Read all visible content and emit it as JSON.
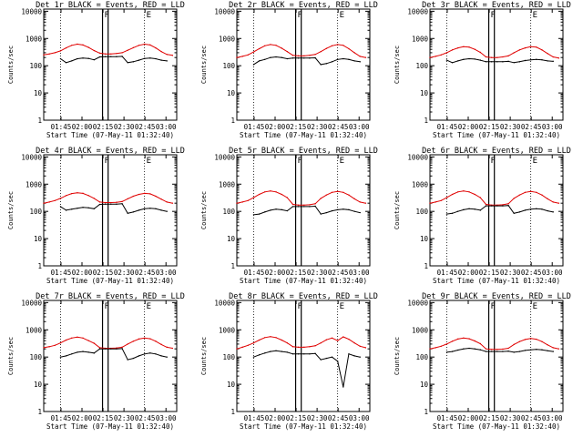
{
  "figure": {
    "colors": {
      "events": "#000000",
      "lld": "#e00000",
      "axes": "#000000",
      "background": "#ffffff"
    },
    "common": {
      "ylabel": "Counts/sec",
      "xlabel": "Start Time (07-May-11 01:32:40)",
      "x_ticks": [
        "01:45",
        "02:00",
        "02:15",
        "02:30",
        "02:45",
        "03:00"
      ],
      "y_ticks": [
        "1",
        "10",
        "100",
        "1000",
        "10000"
      ],
      "markers": [
        "F",
        "E"
      ]
    }
  },
  "chart_data": [
    {
      "type": "line",
      "title": "Det 1r BLACK = Events, RED = LLD",
      "x_units": "minutes after 01:32:40",
      "xlim": [
        0,
        95
      ],
      "ylim": [
        1,
        12000
      ],
      "yscale": "log",
      "grid": false,
      "x": [
        0,
        4,
        8,
        12,
        16,
        20,
        24,
        28,
        32,
        36,
        40,
        44,
        48,
        52,
        56,
        60,
        64,
        68,
        72,
        76,
        80,
        84,
        88,
        92
      ],
      "series": [
        {
          "name": "LLD",
          "color": "red",
          "values": [
            250,
            270,
            300,
            350,
            450,
            560,
            620,
            580,
            470,
            360,
            290,
            270,
            270,
            280,
            300,
            370,
            460,
            560,
            620,
            580,
            450,
            330,
            260,
            240
          ]
        },
        {
          "name": "Events",
          "color": "black",
          "values": [
            null,
            null,
            null,
            180,
            130,
            150,
            180,
            190,
            185,
            165,
            210,
            215,
            215,
            215,
            220,
            130,
            140,
            160,
            185,
            190,
            180,
            160,
            150,
            null
          ]
        }
      ],
      "markers": {
        "F": 42,
        "E": 72
      },
      "vertical_lines": [
        12,
        42,
        46,
        72
      ]
    },
    {
      "type": "line",
      "title": "Det 2r BLACK = Events, RED = LLD",
      "x_units": "minutes after 01:32:40",
      "xlim": [
        0,
        95
      ],
      "ylim": [
        1,
        12000
      ],
      "yscale": "log",
      "grid": false,
      "x": [
        0,
        4,
        8,
        12,
        16,
        20,
        24,
        28,
        32,
        36,
        40,
        44,
        48,
        52,
        56,
        60,
        64,
        68,
        72,
        76,
        80,
        84,
        88,
        92
      ],
      "series": [
        {
          "name": "LLD",
          "color": "red",
          "values": [
            200,
            220,
            250,
            320,
            420,
            540,
            600,
            560,
            440,
            330,
            240,
            230,
            230,
            240,
            260,
            330,
            430,
            540,
            600,
            560,
            420,
            300,
            220,
            200
          ]
        },
        {
          "name": "Events",
          "color": "black",
          "values": [
            null,
            null,
            null,
            110,
            150,
            170,
            200,
            210,
            200,
            180,
            190,
            190,
            190,
            190,
            195,
            110,
            120,
            140,
            170,
            180,
            170,
            150,
            140,
            null
          ]
        }
      ],
      "markers": {
        "F": 42,
        "E": 72
      },
      "vertical_lines": [
        12,
        42,
        46,
        72
      ]
    },
    {
      "type": "line",
      "title": "Det 3r BLACK = Events, RED = LLD",
      "x_units": "minutes after 01:32:40",
      "xlim": [
        0,
        95
      ],
      "ylim": [
        1,
        12000
      ],
      "yscale": "log",
      "grid": false,
      "x": [
        0,
        4,
        8,
        12,
        16,
        20,
        24,
        28,
        32,
        36,
        40,
        44,
        48,
        52,
        56,
        60,
        64,
        68,
        72,
        76,
        80,
        84,
        88,
        92
      ],
      "series": [
        {
          "name": "LLD",
          "color": "red",
          "values": [
            200,
            220,
            250,
            300,
            380,
            450,
            500,
            480,
            400,
            310,
            210,
            200,
            200,
            210,
            230,
            300,
            380,
            450,
            500,
            480,
            380,
            280,
            210,
            190
          ]
        },
        {
          "name": "Events",
          "color": "black",
          "values": [
            null,
            null,
            null,
            160,
            130,
            150,
            170,
            180,
            175,
            160,
            140,
            140,
            140,
            140,
            145,
            130,
            140,
            155,
            165,
            170,
            165,
            150,
            145,
            null
          ]
        }
      ],
      "markers": {
        "F": 42,
        "E": 72
      },
      "vertical_lines": [
        12,
        42,
        46,
        72
      ]
    },
    {
      "type": "line",
      "title": "Det 4r BLACK = Events, RED = LLD",
      "x_units": "minutes after 01:32:40",
      "xlim": [
        0,
        95
      ],
      "ylim": [
        1,
        12000
      ],
      "yscale": "log",
      "grid": false,
      "x": [
        0,
        4,
        8,
        12,
        16,
        20,
        24,
        28,
        32,
        36,
        40,
        44,
        48,
        52,
        56,
        60,
        64,
        68,
        72,
        76,
        80,
        84,
        88,
        92
      ],
      "series": [
        {
          "name": "LLD",
          "color": "red",
          "values": [
            200,
            220,
            250,
            300,
            380,
            450,
            480,
            460,
            380,
            300,
            220,
            210,
            210,
            215,
            230,
            290,
            360,
            420,
            460,
            440,
            360,
            280,
            220,
            200
          ]
        },
        {
          "name": "Events",
          "color": "black",
          "values": [
            null,
            null,
            null,
            150,
            110,
            120,
            130,
            140,
            135,
            125,
            180,
            185,
            185,
            185,
            190,
            85,
            95,
            110,
            125,
            130,
            125,
            110,
            100,
            null
          ]
        }
      ],
      "markers": {
        "F": 42,
        "E": 72
      },
      "vertical_lines": [
        12,
        42,
        46,
        72
      ]
    },
    {
      "type": "line",
      "title": "Det 5r BLACK = Events, RED = LLD",
      "x_units": "minutes after 01:32:40",
      "xlim": [
        0,
        95
      ],
      "ylim": [
        1,
        12000
      ],
      "yscale": "log",
      "grid": false,
      "x": [
        0,
        4,
        8,
        12,
        16,
        20,
        24,
        28,
        32,
        36,
        40,
        44,
        48,
        52,
        56,
        60,
        64,
        68,
        72,
        76,
        80,
        84,
        88,
        92
      ],
      "series": [
        {
          "name": "LLD",
          "color": "red",
          "values": [
            200,
            220,
            250,
            320,
            420,
            520,
            560,
            520,
            420,
            320,
            180,
            170,
            170,
            175,
            190,
            300,
            400,
            500,
            540,
            500,
            400,
            290,
            220,
            200
          ]
        },
        {
          "name": "Events",
          "color": "black",
          "values": [
            null,
            null,
            null,
            75,
            80,
            95,
            110,
            120,
            115,
            105,
            150,
            150,
            150,
            150,
            155,
            80,
            90,
            105,
            115,
            120,
            115,
            100,
            90,
            null
          ]
        }
      ],
      "markers": {
        "F": 42,
        "E": 72
      },
      "vertical_lines": [
        12,
        42,
        46,
        72
      ]
    },
    {
      "type": "line",
      "title": "Det 6r BLACK = Events, RED = LLD",
      "x_units": "minutes after 01:32:40",
      "xlim": [
        0,
        95
      ],
      "ylim": [
        1,
        12000
      ],
      "yscale": "log",
      "grid": false,
      "x": [
        0,
        4,
        8,
        12,
        16,
        20,
        24,
        28,
        32,
        36,
        40,
        44,
        48,
        52,
        56,
        60,
        64,
        68,
        72,
        76,
        80,
        84,
        88,
        92
      ],
      "series": [
        {
          "name": "LLD",
          "color": "red",
          "values": [
            200,
            220,
            250,
            320,
            420,
            520,
            560,
            520,
            420,
            320,
            180,
            170,
            170,
            175,
            190,
            300,
            400,
            500,
            540,
            500,
            400,
            290,
            220,
            200
          ]
        },
        {
          "name": "Events",
          "color": "black",
          "values": [
            null,
            null,
            null,
            80,
            85,
            100,
            115,
            125,
            120,
            110,
            160,
            160,
            160,
            160,
            165,
            85,
            95,
            110,
            120,
            125,
            120,
            105,
            95,
            null
          ]
        }
      ],
      "markers": {
        "F": 42,
        "E": 72
      },
      "vertical_lines": [
        12,
        42,
        46,
        72
      ]
    },
    {
      "type": "line",
      "title": "Det 7r BLACK = Events, RED = LLD",
      "x_units": "minutes after 01:32:40",
      "xlim": [
        0,
        95
      ],
      "ylim": [
        1,
        12000
      ],
      "yscale": "log",
      "grid": false,
      "x": [
        0,
        4,
        8,
        12,
        16,
        20,
        24,
        28,
        32,
        36,
        40,
        44,
        48,
        52,
        56,
        60,
        64,
        68,
        72,
        76,
        80,
        84,
        88,
        92
      ],
      "series": [
        {
          "name": "LLD",
          "color": "red",
          "values": [
            220,
            240,
            270,
            330,
            420,
            500,
            540,
            500,
            400,
            320,
            220,
            210,
            210,
            215,
            230,
            300,
            380,
            460,
            500,
            470,
            380,
            290,
            230,
            210
          ]
        },
        {
          "name": "Events",
          "color": "black",
          "values": [
            null,
            null,
            null,
            100,
            110,
            130,
            150,
            160,
            150,
            140,
            200,
            200,
            200,
            200,
            205,
            80,
            90,
            110,
            130,
            140,
            130,
            110,
            100,
            null
          ]
        }
      ],
      "markers": {
        "F": 42,
        "E": 72
      },
      "vertical_lines": [
        12,
        42,
        46,
        72
      ]
    },
    {
      "type": "line",
      "title": "Det 8r BLACK = Events, RED = LLD",
      "x_units": "minutes after 01:32:40",
      "xlim": [
        0,
        95
      ],
      "ylim": [
        1,
        12000
      ],
      "yscale": "log",
      "grid": false,
      "x": [
        0,
        4,
        8,
        12,
        16,
        20,
        24,
        28,
        32,
        36,
        40,
        44,
        48,
        52,
        56,
        60,
        64,
        68,
        72,
        76,
        80,
        84,
        88,
        92
      ],
      "series": [
        {
          "name": "LLD",
          "color": "red",
          "values": [
            200,
            230,
            270,
            330,
            420,
            520,
            560,
            520,
            420,
            330,
            240,
            230,
            230,
            240,
            260,
            330,
            430,
            500,
            400,
            550,
            450,
            330,
            250,
            220
          ]
        },
        {
          "name": "Events",
          "color": "black",
          "values": [
            null,
            null,
            null,
            100,
            120,
            140,
            160,
            170,
            160,
            150,
            130,
            130,
            130,
            130,
            135,
            80,
            90,
            100,
            70,
            8,
            130,
            110,
            100,
            null
          ]
        }
      ],
      "markers": {
        "F": 42,
        "E": 72
      },
      "vertical_lines": [
        12,
        42,
        46,
        72
      ]
    },
    {
      "type": "line",
      "title": "Det 9r BLACK = Events, RED = LLD",
      "x_units": "minutes after 01:32:40",
      "xlim": [
        0,
        95
      ],
      "ylim": [
        1,
        12000
      ],
      "yscale": "log",
      "grid": false,
      "x": [
        0,
        4,
        8,
        12,
        16,
        20,
        24,
        28,
        32,
        36,
        40,
        44,
        48,
        52,
        56,
        60,
        64,
        68,
        72,
        76,
        80,
        84,
        88,
        92
      ],
      "series": [
        {
          "name": "LLD",
          "color": "red",
          "values": [
            200,
            220,
            250,
            300,
            380,
            460,
            500,
            470,
            390,
            310,
            200,
            190,
            190,
            195,
            210,
            290,
            370,
            440,
            480,
            450,
            370,
            280,
            220,
            200
          ]
        },
        {
          "name": "Events",
          "color": "black",
          "values": [
            null,
            null,
            null,
            150,
            160,
            180,
            200,
            210,
            200,
            185,
            160,
            160,
            160,
            160,
            165,
            150,
            160,
            175,
            185,
            190,
            185,
            170,
            160,
            null
          ]
        }
      ],
      "markers": {
        "F": 42,
        "E": 72
      },
      "vertical_lines": [
        12,
        42,
        46,
        72
      ]
    }
  ]
}
